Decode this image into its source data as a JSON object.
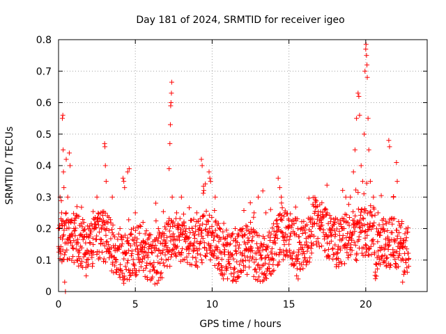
{
  "colors": {
    "background": "#ffffff",
    "points": "#ff0000",
    "grid": "#a0a0a0",
    "axis": "#000000"
  },
  "chart_data": {
    "type": "scatter",
    "title": "Day 181 of 2024, SRMTID for receiver igeo",
    "xlabel": "GPS time / hours",
    "ylabel": "SRMTID / TECUs",
    "xlim": [
      0,
      24
    ],
    "ylim": [
      0,
      0.8
    ],
    "x_ticks": [
      0,
      5,
      10,
      15,
      20
    ],
    "x_tick_labels": [
      "0",
      "5",
      "10",
      "15",
      "20"
    ],
    "y_ticks": [
      0,
      0.1,
      0.2,
      0.3,
      0.4,
      0.5,
      0.6,
      0.7,
      0.8
    ],
    "y_tick_labels": [
      "0",
      "0.1",
      "0.2",
      "0.3",
      "0.4",
      "0.5",
      "0.6",
      "0.7",
      "0.8"
    ],
    "grid": true,
    "marker": "+",
    "series_name": "SRMTID",
    "x_range_of_data": [
      0,
      22.8
    ],
    "points": [
      [
        0.05,
        0.2
      ],
      [
        0.1,
        0.3
      ],
      [
        0.15,
        0.12
      ],
      [
        0.2,
        0.25
      ],
      [
        0.25,
        0.55
      ],
      [
        0.28,
        0.56
      ],
      [
        0.3,
        0.45
      ],
      [
        0.32,
        0.38
      ],
      [
        0.35,
        0.33
      ],
      [
        0.4,
        0.03
      ],
      [
        0.45,
        0.0
      ],
      [
        0.5,
        0.42
      ],
      [
        0.6,
        0.3
      ],
      [
        0.7,
        0.44
      ],
      [
        0.75,
        0.4
      ],
      [
        0.8,
        0.22
      ],
      [
        1.0,
        0.2
      ],
      [
        1.2,
        0.27
      ],
      [
        1.5,
        0.18
      ],
      [
        1.8,
        0.05
      ],
      [
        2.0,
        0.12
      ],
      [
        2.2,
        0.08
      ],
      [
        2.5,
        0.3
      ],
      [
        2.8,
        0.2
      ],
      [
        3.0,
        0.47
      ],
      [
        3.02,
        0.46
      ],
      [
        3.05,
        0.4
      ],
      [
        3.1,
        0.35
      ],
      [
        3.5,
        0.3
      ],
      [
        4.0,
        0.2
      ],
      [
        4.2,
        0.36
      ],
      [
        4.25,
        0.35
      ],
      [
        4.3,
        0.33
      ],
      [
        4.5,
        0.38
      ],
      [
        4.6,
        0.39
      ],
      [
        5.0,
        0.25
      ],
      [
        5.5,
        0.22
      ],
      [
        6.0,
        0.18
      ],
      [
        6.5,
        0.2
      ],
      [
        7.0,
        0.1
      ],
      [
        7.2,
        0.39
      ],
      [
        7.25,
        0.47
      ],
      [
        7.28,
        0.53
      ],
      [
        7.3,
        0.59
      ],
      [
        7.32,
        0.6
      ],
      [
        7.35,
        0.63
      ],
      [
        7.37,
        0.665
      ],
      [
        7.4,
        0.3
      ],
      [
        8.0,
        0.3
      ],
      [
        8.5,
        0.2
      ],
      [
        9.0,
        0.25
      ],
      [
        9.3,
        0.42
      ],
      [
        9.35,
        0.4
      ],
      [
        9.8,
        0.38
      ],
      [
        9.85,
        0.36
      ],
      [
        9.9,
        0.35
      ],
      [
        10.2,
        0.3
      ],
      [
        10.5,
        0.2
      ],
      [
        11.0,
        0.15
      ],
      [
        11.5,
        0.2
      ],
      [
        12.0,
        0.2
      ],
      [
        12.5,
        0.22
      ],
      [
        13.0,
        0.3
      ],
      [
        13.3,
        0.32
      ],
      [
        13.5,
        0.25
      ],
      [
        14.0,
        0.1
      ],
      [
        14.3,
        0.36
      ],
      [
        14.4,
        0.33
      ],
      [
        14.5,
        0.3
      ],
      [
        15.0,
        0.15
      ],
      [
        15.5,
        0.05
      ],
      [
        15.6,
        0.04
      ],
      [
        16.0,
        0.12
      ],
      [
        16.5,
        0.18
      ],
      [
        17.0,
        0.2
      ],
      [
        17.5,
        0.25
      ],
      [
        18.0,
        0.22
      ],
      [
        18.5,
        0.2
      ],
      [
        19.0,
        0.3
      ],
      [
        19.2,
        0.38
      ],
      [
        19.3,
        0.45
      ],
      [
        19.4,
        0.55
      ],
      [
        19.5,
        0.63
      ],
      [
        19.55,
        0.62
      ],
      [
        19.6,
        0.56
      ],
      [
        19.7,
        0.4
      ],
      [
        19.8,
        0.35
      ],
      [
        19.9,
        0.5
      ],
      [
        19.95,
        0.7
      ],
      [
        20.0,
        0.77
      ],
      [
        20.02,
        0.785
      ],
      [
        20.05,
        0.75
      ],
      [
        20.08,
        0.72
      ],
      [
        20.1,
        0.68
      ],
      [
        20.15,
        0.55
      ],
      [
        20.2,
        0.45
      ],
      [
        20.3,
        0.35
      ],
      [
        20.5,
        0.3
      ],
      [
        20.8,
        0.25
      ],
      [
        21.0,
        0.2
      ],
      [
        21.3,
        0.15
      ],
      [
        21.5,
        0.48
      ],
      [
        21.55,
        0.46
      ],
      [
        21.8,
        0.3
      ],
      [
        22.0,
        0.41
      ],
      [
        22.05,
        0.35
      ],
      [
        22.2,
        0.12
      ],
      [
        22.4,
        0.03
      ],
      [
        22.6,
        0.1
      ],
      [
        22.8,
        0.08
      ]
    ]
  }
}
